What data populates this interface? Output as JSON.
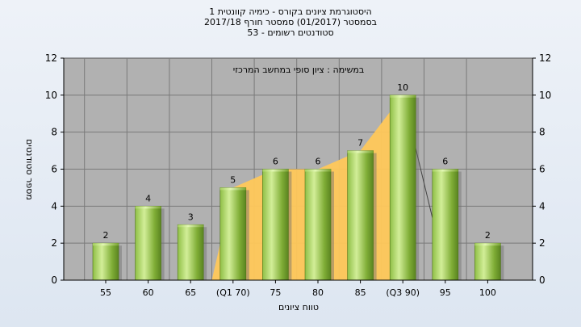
{
  "chart_data": {
    "type": "bar",
    "title": [
      "היסטוגרמת ציונים בקורס - כימיה קוונטית 1",
      "בסמסטר  (01/2017)  סמסטר חורף  2017/18",
      "סטודנטים רשומים - 53"
    ],
    "annotation": "במשימה : ציון סופי במחשב המרכזי",
    "xlabel": "טווח ציונים",
    "ylabel": "מספר סטודנטים",
    "categories": [
      "55",
      "60",
      "65",
      "(Q1 70)",
      "75",
      "80",
      "85",
      "(Q3 90)",
      "95",
      "100"
    ],
    "values": [
      2,
      4,
      3,
      5,
      6,
      6,
      7,
      10,
      6,
      2
    ],
    "ylim": [
      0,
      12
    ],
    "yticks": [
      0,
      2,
      4,
      6,
      8,
      10,
      12
    ],
    "grid": true,
    "interquartile_area": {
      "from": "(Q1 70)",
      "to": "(Q3 90)",
      "color": "#ffc85a"
    },
    "colors": {
      "plot_bg": "#b1b1b1",
      "bar_light": "#c9e88c",
      "bar_dark": "#5e8a21",
      "area": "#ffc85a"
    }
  }
}
